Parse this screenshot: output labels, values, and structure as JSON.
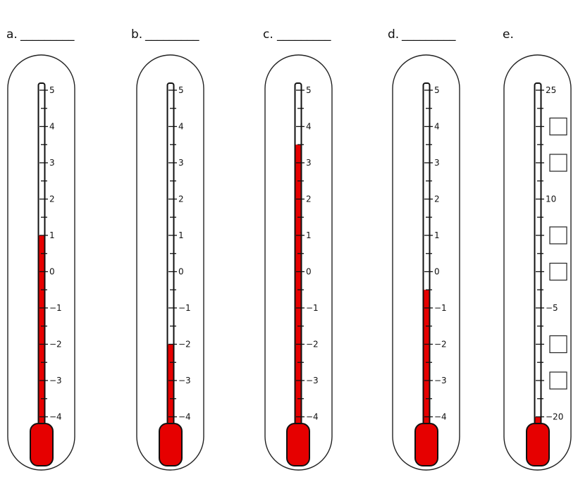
{
  "thermometers": [
    {
      "label": "a.",
      "blank": "_________",
      "min": -5,
      "max": 5,
      "ticks": [
        -4,
        -3,
        -2,
        -1,
        0,
        1,
        2,
        3,
        4,
        5
      ],
      "tick_labels": [
        "−4",
        "−3",
        "−2",
        "−1",
        "0",
        "1",
        "2",
        "3",
        "4",
        "5"
      ],
      "reading": 1
    },
    {
      "label": "b.",
      "blank": "_________",
      "min": -5,
      "max": 5,
      "ticks": [
        -4,
        -3,
        -2,
        -1,
        0,
        1,
        2,
        3,
        4,
        5
      ],
      "tick_labels": [
        "−4",
        "−3",
        "−2",
        "−1",
        "0",
        "1",
        "2",
        "3",
        "4",
        "5"
      ],
      "reading": -2
    },
    {
      "label": "c.",
      "blank": "_________",
      "min": -5,
      "max": 5,
      "ticks": [
        -4,
        -3,
        -2,
        -1,
        0,
        1,
        2,
        3,
        4,
        5
      ],
      "tick_labels": [
        "−4",
        "−3",
        "−2",
        "−1",
        "0",
        "1",
        "2",
        "3",
        "4",
        "5"
      ],
      "reading": 3.5
    },
    {
      "label": "d.",
      "blank": "_________",
      "min": -5,
      "max": 5,
      "ticks": [
        -4,
        -3,
        -2,
        -1,
        0,
        1,
        2,
        3,
        4,
        5
      ],
      "tick_labels": [
        "−4",
        "−3",
        "−2",
        "−1",
        "0",
        "1",
        "2",
        "3",
        "4",
        "5"
      ],
      "reading": -0.5
    },
    {
      "label": "e.",
      "blank": "",
      "min": -25,
      "max": 25,
      "ticks": [
        -20,
        -15,
        -10,
        -5,
        0,
        5,
        10,
        15,
        20,
        25
      ],
      "tick_labels": [
        "−20",
        "",
        "",
        "−5",
        "",
        "",
        "10",
        "",
        "",
        "25"
      ],
      "answer_boxes_at": [
        -15,
        -10,
        0,
        5,
        15,
        20
      ],
      "reading": -20
    }
  ],
  "colors": {
    "mercury": "#e60000",
    "outline": "#111111"
  }
}
